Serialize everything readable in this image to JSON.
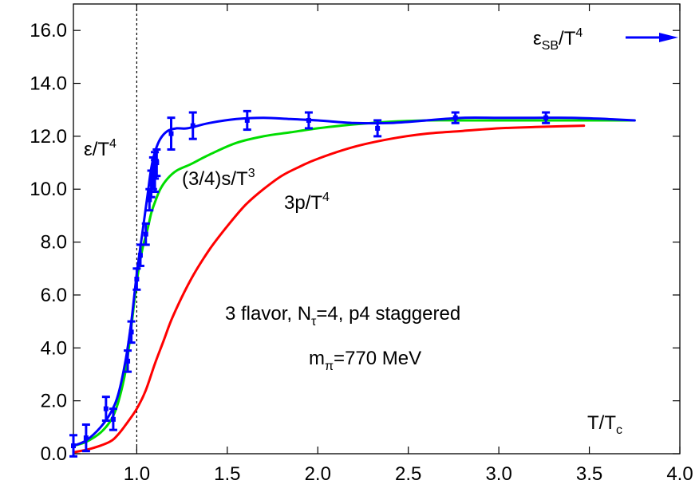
{
  "chart_data": {
    "type": "line",
    "title": "",
    "xlabel": "T/T",
    "xlabel_sub": "c",
    "ylabel": "",
    "xlim": [
      0.65,
      4.0
    ],
    "ylim": [
      0.0,
      17.0
    ],
    "grid": false,
    "x_ticks": [
      1.0,
      1.5,
      2.0,
      2.5,
      3.0,
      3.5,
      4.0
    ],
    "x_tick_labels": [
      "1.0",
      "1.5",
      "2.0",
      "2.5",
      "3.0",
      "3.5",
      "4.0"
    ],
    "y_ticks": [
      0,
      2,
      4,
      6,
      8,
      10,
      12,
      14,
      16
    ],
    "y_tick_labels": [
      "0.0",
      "2.0",
      "4.0",
      "6.0",
      "8.0",
      "10.0",
      "12.0",
      "14.0",
      "16.0"
    ],
    "vline_x": 1.0,
    "series": [
      {
        "name": "ε/T4",
        "color": "#0000ff",
        "style": "line+errorbars",
        "x": [
          0.65,
          0.72,
          0.8,
          0.86,
          0.9,
          0.94,
          0.97,
          1.0,
          1.03,
          1.06,
          1.08,
          1.1,
          1.13,
          1.17,
          1.22,
          1.28,
          1.4,
          1.55,
          1.7,
          1.85,
          2.0,
          2.2,
          2.4,
          2.6,
          2.8,
          3.0,
          3.2,
          3.4,
          3.6,
          3.75
        ],
        "y": [
          0.3,
          0.5,
          1.0,
          1.6,
          2.3,
          3.6,
          5.0,
          6.8,
          8.3,
          9.8,
          10.8,
          11.4,
          11.9,
          12.2,
          12.3,
          12.3,
          12.5,
          12.65,
          12.7,
          12.65,
          12.6,
          12.5,
          12.5,
          12.6,
          12.7,
          12.7,
          12.7,
          12.7,
          12.65,
          12.6
        ],
        "points_x": [
          0.65,
          0.72,
          0.83,
          0.87,
          0.95,
          0.97,
          1.0,
          1.02,
          1.05,
          1.07,
          1.08,
          1.09,
          1.1,
          1.1,
          1.11,
          1.19,
          1.31,
          1.61,
          1.95,
          2.33,
          2.76,
          3.26
        ],
        "points_y": [
          0.3,
          0.6,
          1.7,
          1.3,
          3.5,
          4.6,
          6.6,
          7.5,
          8.3,
          9.6,
          10.2,
          10.6,
          10.9,
          10.5,
          11.0,
          12.1,
          12.4,
          12.6,
          12.6,
          12.3,
          12.7,
          12.7
        ],
        "points_err": [
          0.4,
          0.5,
          0.45,
          0.4,
          0.4,
          0.4,
          0.4,
          0.4,
          0.4,
          0.4,
          0.5,
          0.6,
          0.5,
          0.6,
          0.5,
          0.6,
          0.5,
          0.35,
          0.3,
          0.3,
          0.2,
          0.2
        ]
      },
      {
        "name": "(3/4)s/T3",
        "color": "#00dd00",
        "style": "line",
        "x": [
          0.65,
          0.72,
          0.8,
          0.86,
          0.9,
          0.94,
          0.97,
          1.0,
          1.03,
          1.06,
          1.08,
          1.1,
          1.13,
          1.17,
          1.22,
          1.3,
          1.4,
          1.55,
          1.7,
          1.85,
          2.0,
          2.2,
          2.4,
          2.6,
          2.8,
          3.0,
          3.2,
          3.4,
          3.6,
          3.75
        ],
        "y": [
          0.3,
          0.45,
          0.8,
          1.3,
          2.0,
          3.2,
          4.8,
          6.5,
          7.7,
          8.5,
          9.1,
          9.5,
          10.0,
          10.4,
          10.7,
          10.95,
          11.3,
          11.75,
          12.0,
          12.15,
          12.3,
          12.45,
          12.55,
          12.6,
          12.6,
          12.6,
          12.6,
          12.6,
          12.6,
          12.6
        ]
      },
      {
        "name": "3p/T4",
        "color": "#ff0000",
        "style": "line",
        "x": [
          0.65,
          0.75,
          0.85,
          0.9,
          0.95,
          1.0,
          1.05,
          1.1,
          1.15,
          1.2,
          1.3,
          1.4,
          1.5,
          1.6,
          1.7,
          1.8,
          1.9,
          2.0,
          2.2,
          2.4,
          2.6,
          2.8,
          3.0,
          3.2,
          3.47
        ],
        "y": [
          0.05,
          0.2,
          0.45,
          0.75,
          1.2,
          1.7,
          2.4,
          3.4,
          4.3,
          5.2,
          6.6,
          7.7,
          8.6,
          9.4,
          10.0,
          10.5,
          10.85,
          11.15,
          11.6,
          11.9,
          12.1,
          12.2,
          12.3,
          12.35,
          12.4
        ]
      }
    ],
    "annotations": {
      "eps": {
        "main": "ε/T",
        "sup": "4"
      },
      "s": {
        "main": "(3/4)s/T",
        "sup": "3"
      },
      "p": {
        "main": "3p/T",
        "sup": "4"
      },
      "sb": {
        "main": "ε",
        "sub": "SB",
        "mid": "/T",
        "sup": "4"
      },
      "info1": {
        "a": "3 flavor, N",
        "sub": "τ",
        "b": "=4, p4 staggered"
      },
      "info2": {
        "a": "m",
        "sub": "π",
        "b": "=770 MeV"
      }
    }
  }
}
